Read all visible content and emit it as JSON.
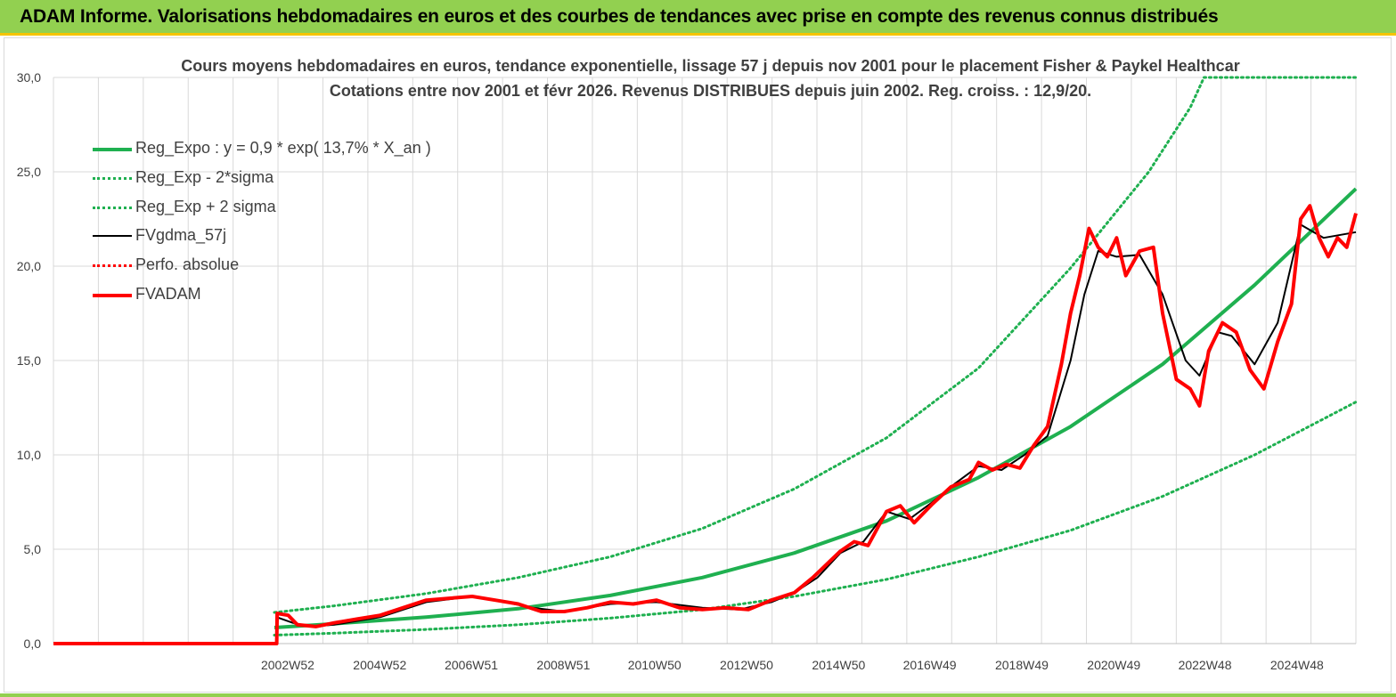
{
  "banner": {
    "text": "ADAM Informe. Valorisations hebdomadaires en euros et des courbes de tendances avec prise en compte des revenus connus distribués"
  },
  "chart_data": {
    "type": "line",
    "title": "Cours moyens hebdomadaires en euros, tendance exponentielle, lissage 57 j depuis nov 2001 pour le placement Fisher & Paykel Healthcar",
    "subtitle": "Cotations entre nov 2001 et févr 2026. Revenus DISTRIBUES depuis juin 2002. Reg. croiss. : 12,9/20.",
    "xlabel": "",
    "ylabel": "",
    "ylim": [
      0,
      30
    ],
    "yticks": [
      "0,0",
      "5,0",
      "10,0",
      "15,0",
      "20,0",
      "25,0",
      "30,0"
    ],
    "xlim": [
      1997.9,
      2026.2
    ],
    "xticks": [
      {
        "label": "2002W52",
        "x": 2002.99
      },
      {
        "label": "2004W52",
        "x": 2004.99
      },
      {
        "label": "2006W51",
        "x": 2006.98
      },
      {
        "label": "2008W51",
        "x": 2008.98
      },
      {
        "label": "2010W50",
        "x": 2010.96
      },
      {
        "label": "2012W50",
        "x": 2012.96
      },
      {
        "label": "2014W50",
        "x": 2014.96
      },
      {
        "label": "2016W49",
        "x": 2016.94
      },
      {
        "label": "2018W49",
        "x": 2018.94
      },
      {
        "label": "2020W49",
        "x": 2020.94
      },
      {
        "label": "2022W48",
        "x": 2022.92
      },
      {
        "label": "2024W48",
        "x": 2024.92
      }
    ],
    "grid": true,
    "legend_position": "top-left",
    "colors": {
      "green": "#1fb050",
      "black": "#000000",
      "red": "#ff0000",
      "grid": "#d9d9d9",
      "axis_text": "#404040"
    },
    "series": [
      {
        "name": "Reg_Expo : y = 0,9 * exp( 13,7% * X_an )",
        "style": "thick-solid",
        "color": "#1fb050",
        "points": [
          [
            2002.7,
            0.85
          ],
          [
            2004,
            1.05
          ],
          [
            2006,
            1.4
          ],
          [
            2008,
            1.85
          ],
          [
            2010,
            2.55
          ],
          [
            2012,
            3.5
          ],
          [
            2014,
            4.8
          ],
          [
            2016,
            6.5
          ],
          [
            2018,
            8.8
          ],
          [
            2020,
            11.5
          ],
          [
            2022,
            14.8
          ],
          [
            2024,
            19.0
          ],
          [
            2026.2,
            24.1
          ]
        ]
      },
      {
        "name": "Reg_Exp - 2*sigma",
        "style": "dotted",
        "color": "#1fb050",
        "points": [
          [
            2002.7,
            0.45
          ],
          [
            2004,
            0.55
          ],
          [
            2006,
            0.75
          ],
          [
            2008,
            1.0
          ],
          [
            2010,
            1.35
          ],
          [
            2012,
            1.8
          ],
          [
            2014,
            2.5
          ],
          [
            2016,
            3.4
          ],
          [
            2018,
            4.6
          ],
          [
            2020,
            6.0
          ],
          [
            2022,
            7.8
          ],
          [
            2024,
            10.0
          ],
          [
            2026.2,
            12.8
          ]
        ]
      },
      {
        "name": "Reg_Exp + 2 sigma",
        "style": "dotted",
        "color": "#1fb050",
        "points": [
          [
            2002.7,
            1.65
          ],
          [
            2004,
            2.0
          ],
          [
            2006,
            2.65
          ],
          [
            2008,
            3.5
          ],
          [
            2010,
            4.6
          ],
          [
            2012,
            6.1
          ],
          [
            2014,
            8.2
          ],
          [
            2016,
            10.9
          ],
          [
            2018,
            14.6
          ],
          [
            2020,
            19.9
          ],
          [
            2021.7,
            25.0
          ],
          [
            2022.6,
            28.4
          ],
          [
            2022.9,
            30.0
          ],
          [
            2026.2,
            30.0
          ]
        ]
      },
      {
        "name": "FVgdma_57j",
        "style": "solid",
        "color": "#000000",
        "points": [
          [
            2002.75,
            1.4
          ],
          [
            2003.1,
            1.1
          ],
          [
            2003.5,
            0.9
          ],
          [
            2004,
            1.0
          ],
          [
            2005,
            1.4
          ],
          [
            2006,
            2.2
          ],
          [
            2007,
            2.5
          ],
          [
            2007.5,
            2.3
          ],
          [
            2008.3,
            1.9
          ],
          [
            2009,
            1.7
          ],
          [
            2010,
            2.1
          ],
          [
            2011,
            2.2
          ],
          [
            2012,
            1.9
          ],
          [
            2012.8,
            1.8
          ],
          [
            2013.5,
            2.2
          ],
          [
            2014,
            2.7
          ],
          [
            2014.5,
            3.5
          ],
          [
            2015,
            4.8
          ],
          [
            2015.5,
            5.4
          ],
          [
            2016,
            7.0
          ],
          [
            2016.5,
            6.6
          ],
          [
            2017,
            7.5
          ],
          [
            2017.5,
            8.5
          ],
          [
            2018,
            9.4
          ],
          [
            2018.5,
            9.2
          ],
          [
            2019,
            10.0
          ],
          [
            2019.5,
            11.0
          ],
          [
            2020,
            15.0
          ],
          [
            2020.3,
            18.5
          ],
          [
            2020.6,
            20.8
          ],
          [
            2021,
            20.5
          ],
          [
            2021.5,
            20.6
          ],
          [
            2022,
            18.5
          ],
          [
            2022.5,
            15.0
          ],
          [
            2022.8,
            14.2
          ],
          [
            2023.2,
            16.5
          ],
          [
            2023.5,
            16.3
          ],
          [
            2024,
            14.8
          ],
          [
            2024.5,
            17.0
          ],
          [
            2025,
            22.2
          ],
          [
            2025.5,
            21.5
          ],
          [
            2026.2,
            21.8
          ]
        ]
      },
      {
        "name": "Perfo. absolue",
        "style": "dotted",
        "color": "#ff0000",
        "points": []
      },
      {
        "name": "FVADAM",
        "style": "thick-solid",
        "color": "#ff0000",
        "points": [
          [
            1997.9,
            0.0
          ],
          [
            2002.75,
            0.0
          ],
          [
            2002.76,
            1.6
          ],
          [
            2003.0,
            1.5
          ],
          [
            2003.2,
            1.0
          ],
          [
            2003.6,
            0.9
          ],
          [
            2004.0,
            1.1
          ],
          [
            2004.5,
            1.3
          ],
          [
            2005.0,
            1.5
          ],
          [
            2005.5,
            1.9
          ],
          [
            2006.0,
            2.3
          ],
          [
            2006.5,
            2.4
          ],
          [
            2007.0,
            2.5
          ],
          [
            2007.5,
            2.3
          ],
          [
            2008.0,
            2.1
          ],
          [
            2008.5,
            1.7
          ],
          [
            2009.0,
            1.7
          ],
          [
            2009.5,
            1.9
          ],
          [
            2010.0,
            2.2
          ],
          [
            2010.5,
            2.1
          ],
          [
            2011.0,
            2.3
          ],
          [
            2011.5,
            1.9
          ],
          [
            2012.0,
            1.8
          ],
          [
            2012.5,
            1.9
          ],
          [
            2013.0,
            1.8
          ],
          [
            2013.5,
            2.3
          ],
          [
            2014.0,
            2.7
          ],
          [
            2014.4,
            3.5
          ],
          [
            2014.7,
            4.2
          ],
          [
            2015.0,
            4.9
          ],
          [
            2015.3,
            5.4
          ],
          [
            2015.6,
            5.2
          ],
          [
            2016.0,
            7.0
          ],
          [
            2016.3,
            7.3
          ],
          [
            2016.6,
            6.4
          ],
          [
            2017.0,
            7.4
          ],
          [
            2017.4,
            8.3
          ],
          [
            2017.8,
            8.7
          ],
          [
            2018.0,
            9.6
          ],
          [
            2018.3,
            9.2
          ],
          [
            2018.6,
            9.5
          ],
          [
            2018.9,
            9.3
          ],
          [
            2019.2,
            10.5
          ],
          [
            2019.5,
            11.5
          ],
          [
            2019.8,
            14.8
          ],
          [
            2020.0,
            17.5
          ],
          [
            2020.2,
            19.5
          ],
          [
            2020.4,
            22.0
          ],
          [
            2020.6,
            21.0
          ],
          [
            2020.8,
            20.5
          ],
          [
            2021.0,
            21.5
          ],
          [
            2021.2,
            19.5
          ],
          [
            2021.5,
            20.8
          ],
          [
            2021.8,
            21.0
          ],
          [
            2022.0,
            17.5
          ],
          [
            2022.3,
            14.0
          ],
          [
            2022.6,
            13.5
          ],
          [
            2022.8,
            12.6
          ],
          [
            2023.0,
            15.5
          ],
          [
            2023.3,
            17.0
          ],
          [
            2023.6,
            16.5
          ],
          [
            2023.9,
            14.5
          ],
          [
            2024.2,
            13.5
          ],
          [
            2024.5,
            16.0
          ],
          [
            2024.8,
            18.0
          ],
          [
            2025.0,
            22.5
          ],
          [
            2025.2,
            23.2
          ],
          [
            2025.4,
            21.5
          ],
          [
            2025.6,
            20.5
          ],
          [
            2025.8,
            21.5
          ],
          [
            2026.0,
            21.0
          ],
          [
            2026.2,
            22.8
          ]
        ]
      }
    ]
  }
}
